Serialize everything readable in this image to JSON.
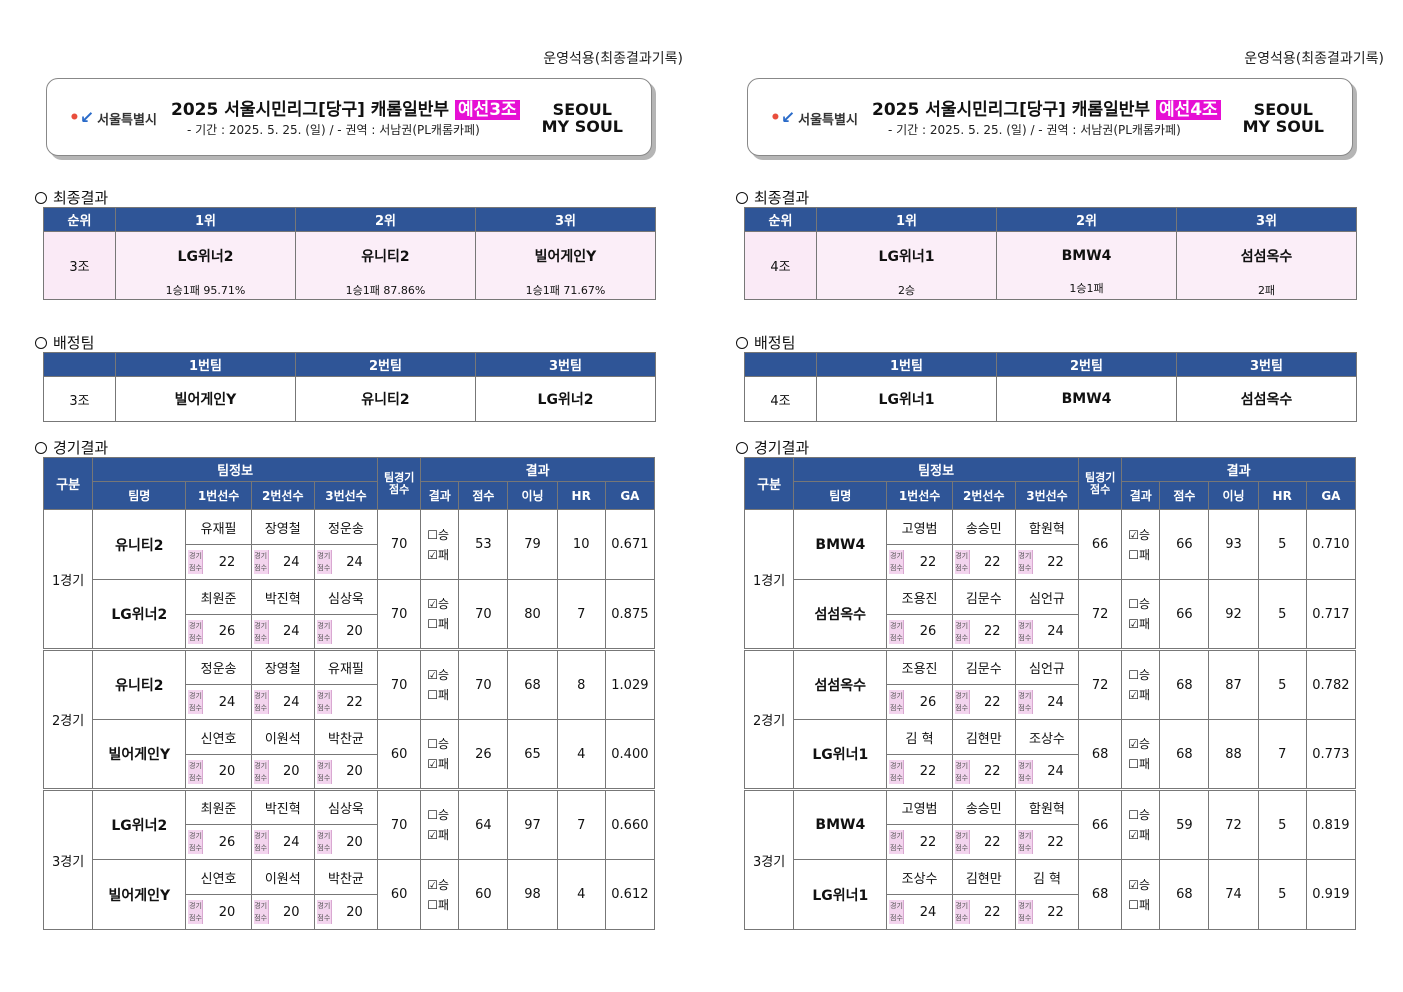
{
  "panels": [
    {
      "top_note": "운영석용(최종결과기록)",
      "banner": {
        "seoul_logo": "서울특별시",
        "title_main": "2025  서울시민리그[당구]  캐롬일반부",
        "title_highlight": "예선3조",
        "subtitle": "- 기간 : 2025. 5. 25. (일) / - 권역 : 서남권(PL캐롬카페)",
        "soul_logo_line1": "SEOUL",
        "soul_logo_line2": "MY SOUL"
      },
      "final": {
        "section": "최종결과",
        "headers": [
          "순위",
          "1위",
          "2위",
          "3위"
        ],
        "group": "3조",
        "teams": [
          "LG위너2",
          "유니티2",
          "빌어게인Y"
        ],
        "records": [
          "1승1패   95.71%",
          "1승1패   87.86%",
          "1승1패   71.67%"
        ]
      },
      "assign": {
        "section": "배정팀",
        "headers": [
          "",
          "1번팀",
          "2번팀",
          "3번팀"
        ],
        "group": "3조",
        "teams": [
          "빌어게인Y",
          "유니티2",
          "LG위너2"
        ]
      },
      "games": {
        "section": "경기결과",
        "h_gubun": "구분",
        "h_teaminfo": "팀정보",
        "h_teamscore": "팀경기\n점수",
        "h_result": "결과",
        "h_sub": [
          "팀명",
          "1번선수",
          "2번선수",
          "3번선수",
          "결과",
          "점수",
          "이닝",
          "HR",
          "GA"
        ],
        "score_tag": "경기\n점수",
        "win_label": "승",
        "lose_label": "패",
        "matches": [
          {
            "label": "1경기",
            "rows": [
              {
                "team": "유니티2",
                "players": [
                  "유재필",
                  "장영철",
                  "정운송"
                ],
                "scores": [
                  "22",
                  "24",
                  "24"
                ],
                "team_score": "70",
                "win": false,
                "pts": "53",
                "inn": "79",
                "hr": "10",
                "ga": "0.671"
              },
              {
                "team": "LG위너2",
                "players": [
                  "최원준",
                  "박진혁",
                  "심상욱"
                ],
                "scores": [
                  "26",
                  "24",
                  "20"
                ],
                "team_score": "70",
                "win": true,
                "pts": "70",
                "inn": "80",
                "hr": "7",
                "ga": "0.875"
              }
            ]
          },
          {
            "label": "2경기",
            "rows": [
              {
                "team": "유니티2",
                "players": [
                  "정운송",
                  "장영철",
                  "유재필"
                ],
                "scores": [
                  "24",
                  "24",
                  "22"
                ],
                "team_score": "70",
                "win": true,
                "pts": "70",
                "inn": "68",
                "hr": "8",
                "ga": "1.029"
              },
              {
                "team": "빌어게인Y",
                "players": [
                  "신연호",
                  "이원석",
                  "박찬균"
                ],
                "scores": [
                  "20",
                  "20",
                  "20"
                ],
                "team_score": "60",
                "win": false,
                "pts": "26",
                "inn": "65",
                "hr": "4",
                "ga": "0.400"
              }
            ]
          },
          {
            "label": "3경기",
            "rows": [
              {
                "team": "LG위너2",
                "players": [
                  "최원준",
                  "박진혁",
                  "심상욱"
                ],
                "scores": [
                  "26",
                  "24",
                  "20"
                ],
                "team_score": "70",
                "win": false,
                "pts": "64",
                "inn": "97",
                "hr": "7",
                "ga": "0.660"
              },
              {
                "team": "빌어게인Y",
                "players": [
                  "신연호",
                  "이원석",
                  "박찬균"
                ],
                "scores": [
                  "20",
                  "20",
                  "20"
                ],
                "team_score": "60",
                "win": true,
                "pts": "60",
                "inn": "98",
                "hr": "4",
                "ga": "0.612"
              }
            ]
          }
        ]
      }
    },
    {
      "top_note": "운영석용(최종결과기록)",
      "banner": {
        "seoul_logo": "서울특별시",
        "title_main": "2025  서울시민리그[당구]  캐롬일반부",
        "title_highlight": "예선4조",
        "subtitle": "- 기간 : 2025. 5. 25. (일) / - 권역 : 서남권(PL캐롬카페)",
        "soul_logo_line1": "SEOUL",
        "soul_logo_line2": "MY SOUL"
      },
      "final": {
        "section": "최종결과",
        "headers": [
          "순위",
          "1위",
          "2위",
          "3위"
        ],
        "group": "4조",
        "teams": [
          "LG위너1",
          "BMW4",
          "섬섬옥수"
        ],
        "records": [
          "2승",
          "1승1패",
          "2패"
        ]
      },
      "assign": {
        "section": "배정팀",
        "headers": [
          "",
          "1번팀",
          "2번팀",
          "3번팀"
        ],
        "group": "4조",
        "teams": [
          "LG위너1",
          "BMW4",
          "섬섬옥수"
        ]
      },
      "games": {
        "section": "경기결과",
        "h_gubun": "구분",
        "h_teaminfo": "팀정보",
        "h_teamscore": "팀경기\n점수",
        "h_result": "결과",
        "h_sub": [
          "팀명",
          "1번선수",
          "2번선수",
          "3번선수",
          "결과",
          "점수",
          "이닝",
          "HR",
          "GA"
        ],
        "score_tag": "경기\n점수",
        "win_label": "승",
        "lose_label": "패",
        "matches": [
          {
            "label": "1경기",
            "rows": [
              {
                "team": "BMW4",
                "players": [
                  "고영범",
                  "송승민",
                  "함원혁"
                ],
                "scores": [
                  "22",
                  "22",
                  "22"
                ],
                "team_score": "66",
                "win": true,
                "pts": "66",
                "inn": "93",
                "hr": "5",
                "ga": "0.710"
              },
              {
                "team": "섬섬옥수",
                "players": [
                  "조용진",
                  "김문수",
                  "심언규"
                ],
                "scores": [
                  "26",
                  "22",
                  "24"
                ],
                "team_score": "72",
                "win": false,
                "pts": "66",
                "inn": "92",
                "hr": "5",
                "ga": "0.717"
              }
            ]
          },
          {
            "label": "2경기",
            "rows": [
              {
                "team": "섬섬옥수",
                "players": [
                  "조용진",
                  "김문수",
                  "심언규"
                ],
                "scores": [
                  "26",
                  "22",
                  "24"
                ],
                "team_score": "72",
                "win": false,
                "pts": "68",
                "inn": "87",
                "hr": "5",
                "ga": "0.782"
              },
              {
                "team": "LG위너1",
                "players": [
                  "김  혁",
                  "김현만",
                  "조상수"
                ],
                "scores": [
                  "22",
                  "22",
                  "24"
                ],
                "team_score": "68",
                "win": true,
                "pts": "68",
                "inn": "88",
                "hr": "7",
                "ga": "0.773"
              }
            ]
          },
          {
            "label": "3경기",
            "rows": [
              {
                "team": "BMW4",
                "players": [
                  "고영범",
                  "송승민",
                  "함원혁"
                ],
                "scores": [
                  "22",
                  "22",
                  "22"
                ],
                "team_score": "66",
                "win": false,
                "pts": "59",
                "inn": "72",
                "hr": "5",
                "ga": "0.819"
              },
              {
                "team": "LG위너1",
                "players": [
                  "조상수",
                  "김현만",
                  "김  혁"
                ],
                "scores": [
                  "24",
                  "22",
                  "22"
                ],
                "team_score": "68",
                "win": true,
                "pts": "68",
                "inn": "74",
                "hr": "5",
                "ga": "0.919"
              }
            ]
          }
        ]
      }
    }
  ]
}
